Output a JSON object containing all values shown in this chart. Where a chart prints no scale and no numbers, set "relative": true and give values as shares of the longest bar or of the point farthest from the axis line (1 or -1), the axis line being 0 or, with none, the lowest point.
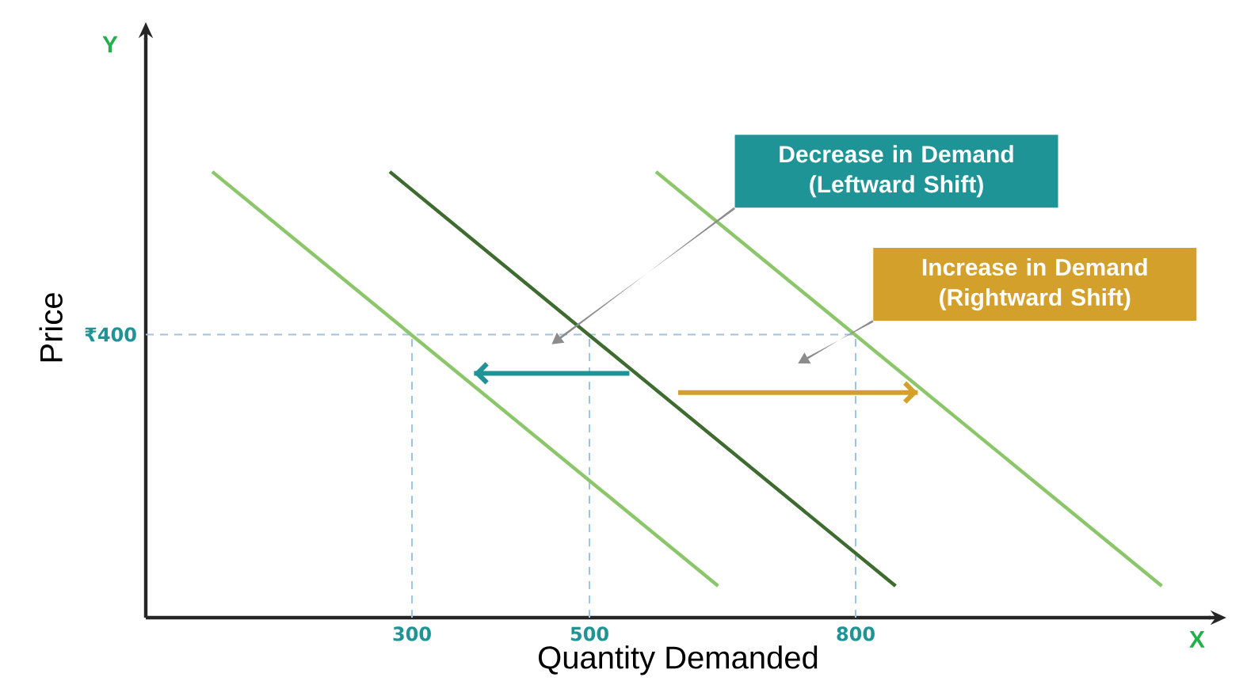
{
  "chart_data": {
    "type": "line",
    "xlabel": "Quantity Demanded",
    "ylabel": "Price",
    "relative": true,
    "xlim": [
      0,
      1200
    ],
    "xticks": [
      300,
      500,
      800
    ],
    "series": [
      {
        "color": "#8cc66a",
        "values": [
          1,
          0.071
        ],
        "x": [
          75,
          645
        ]
      },
      {
        "color": "#3e6b2f",
        "values": [
          1,
          0.071
        ],
        "x": [
          275,
          845
        ]
      },
      {
        "color": "#8cc66a",
        "values": [
          1,
          0.071
        ],
        "x": [
          575,
          1145
        ]
      },
      {
        "color": "#1f9497",
        "values": [
          0.548,
          0.548
        ],
        "x": [
          545,
          370
        ],
        "type": "line"
      },
      {
        "color": "#d4a02c",
        "values": [
          0.505,
          0.505
        ],
        "x": [
          600,
          870
        ],
        "type": "line"
      }
    ],
    "ref_lines": [
      {
        "axis": "y",
        "value": 0.635,
        "label": "₹400",
        "color": "#9dc3e6",
        "line_style": "dashed"
      },
      {
        "axis": "x",
        "value": 300,
        "color": "#9dc3e6",
        "line_style": "dashed"
      },
      {
        "axis": "x",
        "value": 500,
        "color": "#9dc3e6",
        "line_style": "dashed"
      },
      {
        "axis": "x",
        "value": 800,
        "color": "#9dc3e6",
        "line_style": "dashed"
      }
    ],
    "annotations": [
      "Decrease in Demand (Leftward Shift)",
      "Increase in Demand (Rightward Shift)",
      "Y",
      "X"
    ]
  }
}
